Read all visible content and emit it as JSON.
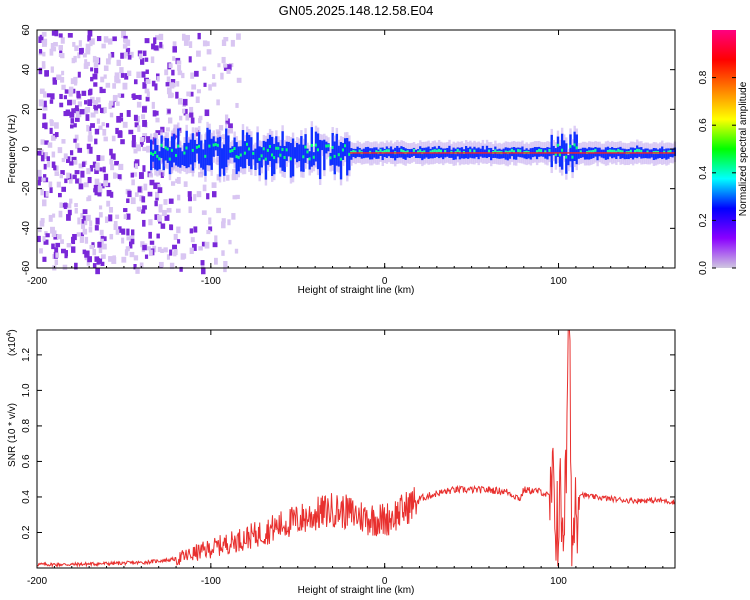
{
  "title": "GN05.2025.148.12.58.E04",
  "colors": {
    "trace": "#e8302e",
    "frame": "#000000",
    "scatter": "#7b2fd8",
    "colorbar_stops": [
      "#cfc7df",
      "#8a00ff",
      "#0000ff",
      "#00ffff",
      "#00ff00",
      "#ffff00",
      "#ff8000",
      "#ff0000",
      "#ff0080"
    ]
  },
  "chart_data": [
    {
      "type": "heatmap",
      "title": "GN05.2025.148.12.58.E04",
      "xlabel": "Height of straight line (km)",
      "ylabel": "Frequency (Hz)",
      "xlim": [
        -200,
        167
      ],
      "ylim": [
        -60,
        60
      ],
      "xticks": [
        -200,
        -100,
        0,
        100
      ],
      "yticks": [
        -60,
        -40,
        -20,
        0,
        20,
        40,
        60
      ],
      "colorbar": {
        "label": "Normalized spectral amplitude",
        "range": [
          0,
          1
        ],
        "ticks": [
          "0.0",
          "0.2",
          "0.4",
          "0.6",
          "0.8"
        ],
        "tick_values": [
          0.0,
          0.2,
          0.4,
          0.6,
          0.8
        ]
      },
      "features": {
        "noise_region_x": [
          -200,
          -110
        ],
        "signal_band_center_hz": -2,
        "signal_band_start_x": -135,
        "burst_near_x": 105
      }
    },
    {
      "type": "line",
      "xlabel": "Height of straight line (km)",
      "ylabel": "SNR (10 * v/v)",
      "multiplier_label": "(x10",
      "multiplier_exp": "4",
      "multiplier_close": ")",
      "xlim": [
        -200,
        167
      ],
      "ylim": [
        0.0,
        1.34
      ],
      "xticks": [
        -200,
        -100,
        0,
        100
      ],
      "yticks": [
        "0.2",
        "0.4",
        "0.6",
        "0.8",
        "1.0",
        "1.2"
      ],
      "ytick_values": [
        0.2,
        0.4,
        0.6,
        0.8,
        1.0,
        1.2
      ],
      "series": [
        {
          "x": [
            -200,
            -180,
            -160,
            -140,
            -120,
            -110,
            -100,
            -90,
            -80,
            -70,
            -60,
            -50,
            -40,
            -30,
            -20,
            -10,
            0,
            10,
            20,
            30,
            40,
            50,
            60,
            70,
            78,
            80,
            90,
            95,
            100,
            104,
            106,
            108,
            110,
            115,
            120,
            140,
            160,
            167
          ],
          "y": [
            0.02,
            0.02,
            0.025,
            0.03,
            0.05,
            0.08,
            0.11,
            0.14,
            0.17,
            0.2,
            0.24,
            0.27,
            0.3,
            0.33,
            0.31,
            0.28,
            0.27,
            0.32,
            0.39,
            0.42,
            0.44,
            0.44,
            0.44,
            0.43,
            0.39,
            0.44,
            0.43,
            0.4,
            0.3,
            0.35,
            1.38,
            0.1,
            0.43,
            0.41,
            0.4,
            0.38,
            0.38,
            0.37
          ]
        }
      ]
    }
  ]
}
